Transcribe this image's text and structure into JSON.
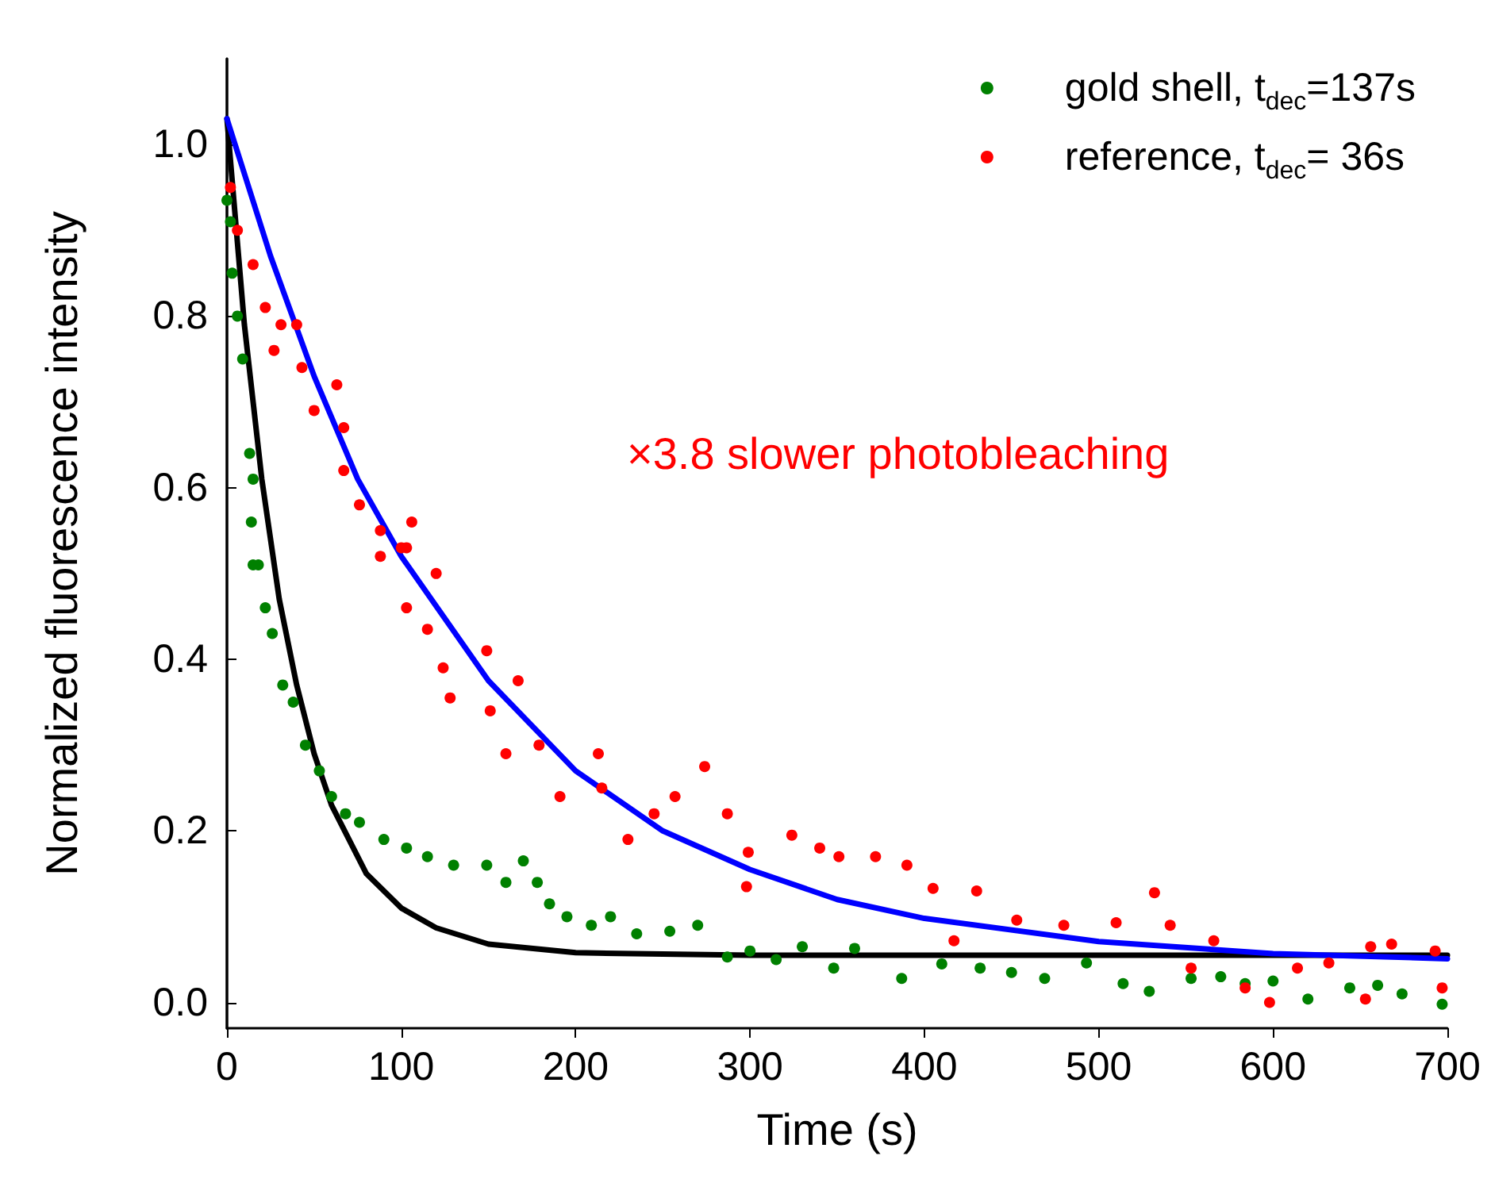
{
  "chart_data": {
    "type": "scatter",
    "xlabel": "Time (s)",
    "ylabel": "Normalized fluorescence intensity",
    "xlim": [
      0,
      700
    ],
    "xticks": [
      0,
      100,
      200,
      300,
      400,
      500,
      600,
      700
    ],
    "ylim": [
      -0.03,
      1.1
    ],
    "yticks": [
      {
        "value": 0,
        "label": "0.0"
      },
      0.2,
      0.4,
      0.6,
      0.8,
      {
        "value": 1,
        "label": "1.0"
      }
    ],
    "legend": "top right",
    "grid": false,
    "annotations": [
      "×3.8 slower photobleaching"
    ],
    "series": [
      {
        "name": "gold shell, t$_{dec}$=137s",
        "color": "#008000",
        "marker": "circle",
        "x": [
          0,
          2,
          3,
          6,
          9,
          13,
          14,
          15,
          15,
          18,
          22,
          26,
          32,
          38,
          45,
          53,
          60,
          68,
          76,
          90,
          103,
          115,
          130,
          149,
          160,
          170,
          178,
          185,
          195,
          209,
          220,
          235,
          254,
          270,
          287,
          300,
          315,
          330,
          348,
          360,
          387,
          410,
          432,
          450,
          469,
          493,
          514,
          529,
          553,
          570,
          584,
          600,
          620,
          644,
          660,
          674,
          697
        ],
        "values": [
          0.935,
          0.91,
          0.85,
          0.8,
          0.75,
          0.64,
          0.56,
          0.61,
          0.51,
          0.51,
          0.46,
          0.43,
          0.37,
          0.35,
          0.3,
          0.27,
          0.24,
          0.22,
          0.21,
          0.19,
          0.18,
          0.17,
          0.16,
          0.16,
          0.14,
          0.165,
          0.14,
          0.115,
          0.1,
          0.09,
          0.1,
          0.08,
          0.083,
          0.09,
          0.053,
          0.06,
          0.05,
          0.065,
          0.04,
          0.063,
          0.028,
          0.045,
          0.04,
          0.035,
          0.028,
          0.046,
          0.022,
          0.013,
          0.028,
          0.03,
          0.022,
          0.025,
          0.004,
          0.017,
          0.02,
          0.01,
          -0.002
        ]
      },
      {
        "name": "reference, t$_{dec}$= 36s",
        "color": "#ff0000",
        "marker": "circle",
        "x": [
          2,
          6,
          15,
          22,
          27,
          31,
          40,
          43,
          50,
          63,
          67,
          67,
          76,
          88,
          88,
          100,
          103,
          103,
          106,
          115,
          120,
          124,
          128,
          149,
          151,
          160,
          167,
          179,
          191,
          213,
          215,
          230,
          245,
          257,
          274,
          287,
          298,
          299,
          324,
          340,
          351,
          372,
          390,
          405,
          417,
          430,
          453,
          480,
          510,
          532,
          541,
          553,
          566,
          584,
          598,
          614,
          632,
          653,
          656,
          668,
          693,
          697
        ],
        "values": [
          0.95,
          0.9,
          0.86,
          0.81,
          0.76,
          0.79,
          0.79,
          0.74,
          0.69,
          0.72,
          0.67,
          0.62,
          0.58,
          0.55,
          0.52,
          0.53,
          0.53,
          0.46,
          0.56,
          0.435,
          0.5,
          0.39,
          0.355,
          0.41,
          0.34,
          0.29,
          0.375,
          0.3,
          0.24,
          0.29,
          0.25,
          0.19,
          0.22,
          0.24,
          0.275,
          0.22,
          0.135,
          0.175,
          0.195,
          0.18,
          0.17,
          0.17,
          0.16,
          0.133,
          0.072,
          0.13,
          0.096,
          0.09,
          0.093,
          0.128,
          0.09,
          0.04,
          0.072,
          0.017,
          0.0,
          0.04,
          0.046,
          0.004,
          0.065,
          0.068,
          0.06,
          0.017
        ]
      },
      {
        "type": "line",
        "color": "#000000",
        "marker": "none",
        "x": [
          0,
          10,
          20,
          30,
          40,
          50,
          60,
          80,
          100,
          120,
          150,
          200,
          300,
          400,
          500,
          600,
          700
        ],
        "values": [
          1.03,
          0.79,
          0.61,
          0.47,
          0.37,
          0.29,
          0.23,
          0.15,
          0.11,
          0.087,
          0.068,
          0.058,
          0.055,
          0.055,
          0.055,
          0.055,
          0.055
        ]
      },
      {
        "type": "line",
        "color": "#0000ff",
        "marker": "none",
        "x": [
          0,
          25,
          50,
          75,
          100,
          150,
          200,
          250,
          300,
          350,
          400,
          500,
          600,
          700
        ],
        "values": [
          1.03,
          0.87,
          0.73,
          0.61,
          0.52,
          0.375,
          0.27,
          0.2,
          0.155,
          0.12,
          0.098,
          0.071,
          0.057,
          0.051
        ]
      }
    ]
  }
}
